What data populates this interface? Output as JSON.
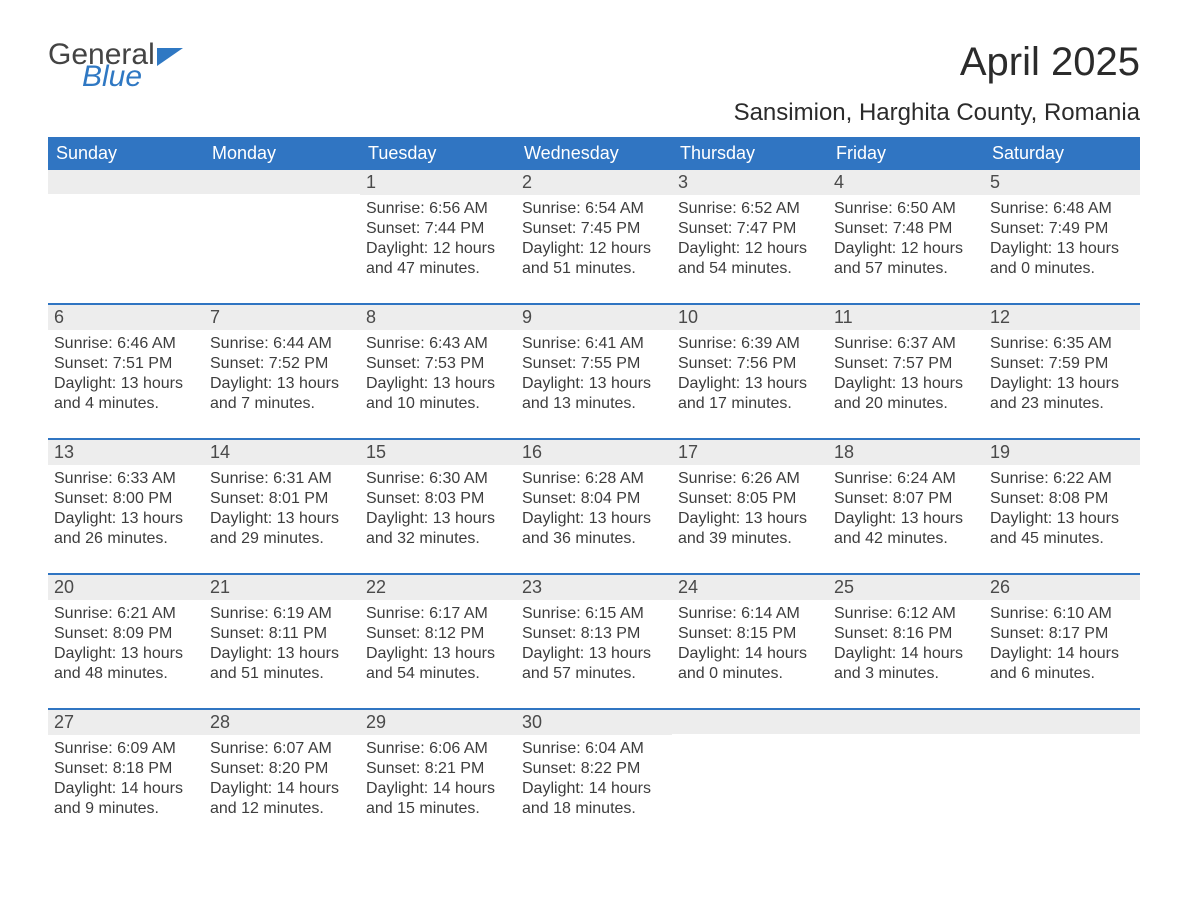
{
  "brand": {
    "general": "General",
    "blue": "Blue"
  },
  "title": "April 2025",
  "location": "Sansimion, Harghita County, Romania",
  "colors": {
    "header_bg": "#3075c2",
    "header_text": "#ffffff",
    "daynum_bg": "#ededed",
    "border": "#3075c2",
    "text": "#333333"
  },
  "day_headers": [
    "Sunday",
    "Monday",
    "Tuesday",
    "Wednesday",
    "Thursday",
    "Friday",
    "Saturday"
  ],
  "weeks": [
    [
      {
        "n": "",
        "sunrise": "",
        "sunset": "",
        "daylight": ""
      },
      {
        "n": "",
        "sunrise": "",
        "sunset": "",
        "daylight": ""
      },
      {
        "n": "1",
        "sunrise": "Sunrise: 6:56 AM",
        "sunset": "Sunset: 7:44 PM",
        "daylight": "Daylight: 12 hours and 47 minutes."
      },
      {
        "n": "2",
        "sunrise": "Sunrise: 6:54 AM",
        "sunset": "Sunset: 7:45 PM",
        "daylight": "Daylight: 12 hours and 51 minutes."
      },
      {
        "n": "3",
        "sunrise": "Sunrise: 6:52 AM",
        "sunset": "Sunset: 7:47 PM",
        "daylight": "Daylight: 12 hours and 54 minutes."
      },
      {
        "n": "4",
        "sunrise": "Sunrise: 6:50 AM",
        "sunset": "Sunset: 7:48 PM",
        "daylight": "Daylight: 12 hours and 57 minutes."
      },
      {
        "n": "5",
        "sunrise": "Sunrise: 6:48 AM",
        "sunset": "Sunset: 7:49 PM",
        "daylight": "Daylight: 13 hours and 0 minutes."
      }
    ],
    [
      {
        "n": "6",
        "sunrise": "Sunrise: 6:46 AM",
        "sunset": "Sunset: 7:51 PM",
        "daylight": "Daylight: 13 hours and 4 minutes."
      },
      {
        "n": "7",
        "sunrise": "Sunrise: 6:44 AM",
        "sunset": "Sunset: 7:52 PM",
        "daylight": "Daylight: 13 hours and 7 minutes."
      },
      {
        "n": "8",
        "sunrise": "Sunrise: 6:43 AM",
        "sunset": "Sunset: 7:53 PM",
        "daylight": "Daylight: 13 hours and 10 minutes."
      },
      {
        "n": "9",
        "sunrise": "Sunrise: 6:41 AM",
        "sunset": "Sunset: 7:55 PM",
        "daylight": "Daylight: 13 hours and 13 minutes."
      },
      {
        "n": "10",
        "sunrise": "Sunrise: 6:39 AM",
        "sunset": "Sunset: 7:56 PM",
        "daylight": "Daylight: 13 hours and 17 minutes."
      },
      {
        "n": "11",
        "sunrise": "Sunrise: 6:37 AM",
        "sunset": "Sunset: 7:57 PM",
        "daylight": "Daylight: 13 hours and 20 minutes."
      },
      {
        "n": "12",
        "sunrise": "Sunrise: 6:35 AM",
        "sunset": "Sunset: 7:59 PM",
        "daylight": "Daylight: 13 hours and 23 minutes."
      }
    ],
    [
      {
        "n": "13",
        "sunrise": "Sunrise: 6:33 AM",
        "sunset": "Sunset: 8:00 PM",
        "daylight": "Daylight: 13 hours and 26 minutes."
      },
      {
        "n": "14",
        "sunrise": "Sunrise: 6:31 AM",
        "sunset": "Sunset: 8:01 PM",
        "daylight": "Daylight: 13 hours and 29 minutes."
      },
      {
        "n": "15",
        "sunrise": "Sunrise: 6:30 AM",
        "sunset": "Sunset: 8:03 PM",
        "daylight": "Daylight: 13 hours and 32 minutes."
      },
      {
        "n": "16",
        "sunrise": "Sunrise: 6:28 AM",
        "sunset": "Sunset: 8:04 PM",
        "daylight": "Daylight: 13 hours and 36 minutes."
      },
      {
        "n": "17",
        "sunrise": "Sunrise: 6:26 AM",
        "sunset": "Sunset: 8:05 PM",
        "daylight": "Daylight: 13 hours and 39 minutes."
      },
      {
        "n": "18",
        "sunrise": "Sunrise: 6:24 AM",
        "sunset": "Sunset: 8:07 PM",
        "daylight": "Daylight: 13 hours and 42 minutes."
      },
      {
        "n": "19",
        "sunrise": "Sunrise: 6:22 AM",
        "sunset": "Sunset: 8:08 PM",
        "daylight": "Daylight: 13 hours and 45 minutes."
      }
    ],
    [
      {
        "n": "20",
        "sunrise": "Sunrise: 6:21 AM",
        "sunset": "Sunset: 8:09 PM",
        "daylight": "Daylight: 13 hours and 48 minutes."
      },
      {
        "n": "21",
        "sunrise": "Sunrise: 6:19 AM",
        "sunset": "Sunset: 8:11 PM",
        "daylight": "Daylight: 13 hours and 51 minutes."
      },
      {
        "n": "22",
        "sunrise": "Sunrise: 6:17 AM",
        "sunset": "Sunset: 8:12 PM",
        "daylight": "Daylight: 13 hours and 54 minutes."
      },
      {
        "n": "23",
        "sunrise": "Sunrise: 6:15 AM",
        "sunset": "Sunset: 8:13 PM",
        "daylight": "Daylight: 13 hours and 57 minutes."
      },
      {
        "n": "24",
        "sunrise": "Sunrise: 6:14 AM",
        "sunset": "Sunset: 8:15 PM",
        "daylight": "Daylight: 14 hours and 0 minutes."
      },
      {
        "n": "25",
        "sunrise": "Sunrise: 6:12 AM",
        "sunset": "Sunset: 8:16 PM",
        "daylight": "Daylight: 14 hours and 3 minutes."
      },
      {
        "n": "26",
        "sunrise": "Sunrise: 6:10 AM",
        "sunset": "Sunset: 8:17 PM",
        "daylight": "Daylight: 14 hours and 6 minutes."
      }
    ],
    [
      {
        "n": "27",
        "sunrise": "Sunrise: 6:09 AM",
        "sunset": "Sunset: 8:18 PM",
        "daylight": "Daylight: 14 hours and 9 minutes."
      },
      {
        "n": "28",
        "sunrise": "Sunrise: 6:07 AM",
        "sunset": "Sunset: 8:20 PM",
        "daylight": "Daylight: 14 hours and 12 minutes."
      },
      {
        "n": "29",
        "sunrise": "Sunrise: 6:06 AM",
        "sunset": "Sunset: 8:21 PM",
        "daylight": "Daylight: 14 hours and 15 minutes."
      },
      {
        "n": "30",
        "sunrise": "Sunrise: 6:04 AM",
        "sunset": "Sunset: 8:22 PM",
        "daylight": "Daylight: 14 hours and 18 minutes."
      },
      {
        "n": "",
        "sunrise": "",
        "sunset": "",
        "daylight": ""
      },
      {
        "n": "",
        "sunrise": "",
        "sunset": "",
        "daylight": ""
      },
      {
        "n": "",
        "sunrise": "",
        "sunset": "",
        "daylight": ""
      }
    ]
  ]
}
